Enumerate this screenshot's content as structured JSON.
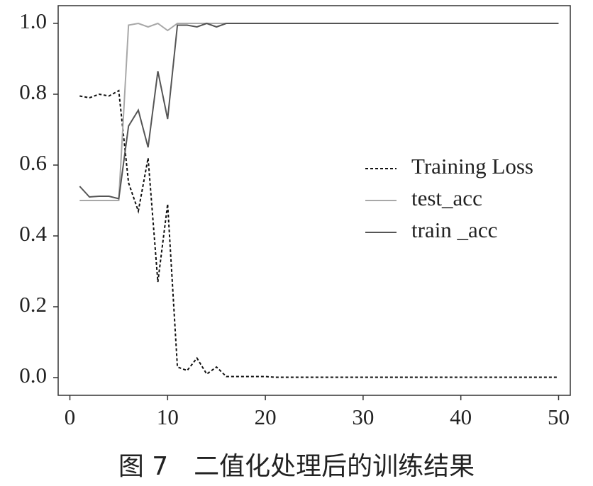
{
  "chart_data": {
    "type": "line",
    "caption": "图 7　二值化处理后的训练结果",
    "x": [
      1,
      2,
      3,
      4,
      5,
      6,
      7,
      8,
      9,
      10,
      11,
      12,
      13,
      14,
      15,
      16,
      17,
      18,
      19,
      20,
      21,
      22,
      23,
      24,
      25,
      26,
      27,
      28,
      29,
      30,
      31,
      32,
      33,
      34,
      35,
      36,
      37,
      38,
      39,
      40,
      41,
      42,
      43,
      44,
      45,
      46,
      47,
      48,
      49,
      50
    ],
    "series": [
      {
        "name": "Training Loss",
        "color": "#111111",
        "linestyle": "dashed",
        "values": [
          0.795,
          0.79,
          0.8,
          0.795,
          0.81,
          0.55,
          0.47,
          0.62,
          0.27,
          0.49,
          0.03,
          0.02,
          0.055,
          0.01,
          0.03,
          0.003,
          0.003,
          0.003,
          0.003,
          0.003,
          0.001,
          0.001,
          0.001,
          0.001,
          0.001,
          0.001,
          0.001,
          0.001,
          0.001,
          0.001,
          0.001,
          0.001,
          0.001,
          0.001,
          0.001,
          0.001,
          0.001,
          0.001,
          0.001,
          0.001,
          0.001,
          0.001,
          0.001,
          0.001,
          0.001,
          0.001,
          0.001,
          0.001,
          0.001,
          0.001
        ]
      },
      {
        "name": "test_acc",
        "color": "#a8a8a8",
        "linestyle": "solid",
        "values": [
          0.5,
          0.5,
          0.5,
          0.5,
          0.5,
          0.995,
          1.0,
          0.99,
          1.0,
          0.98,
          1.0,
          1.0,
          1.0,
          1.0,
          1.0,
          1.0,
          1.0,
          1.0,
          1.0,
          1.0,
          1.0,
          1.0,
          1.0,
          1.0,
          1.0,
          1.0,
          1.0,
          1.0,
          1.0,
          1.0,
          1.0,
          1.0,
          1.0,
          1.0,
          1.0,
          1.0,
          1.0,
          1.0,
          1.0,
          1.0,
          1.0,
          1.0,
          1.0,
          1.0,
          1.0,
          1.0,
          1.0,
          1.0,
          1.0,
          1.0
        ]
      },
      {
        "name": "train _acc",
        "color": "#555555",
        "linestyle": "solid",
        "values": [
          0.54,
          0.51,
          0.512,
          0.512,
          0.505,
          0.71,
          0.755,
          0.65,
          0.865,
          0.73,
          0.995,
          0.995,
          0.99,
          1.0,
          0.99,
          1.0,
          1.0,
          1.0,
          1.0,
          1.0,
          1.0,
          1.0,
          1.0,
          1.0,
          1.0,
          1.0,
          1.0,
          1.0,
          1.0,
          1.0,
          1.0,
          1.0,
          1.0,
          1.0,
          1.0,
          1.0,
          1.0,
          1.0,
          1.0,
          1.0,
          1.0,
          1.0,
          1.0,
          1.0,
          1.0,
          1.0,
          1.0,
          1.0,
          1.0,
          1.0
        ]
      }
    ],
    "xlim": [
      -1.2,
      51.2
    ],
    "xticks": [
      0,
      10,
      20,
      30,
      40,
      50
    ],
    "ylim": [
      -0.05,
      1.05
    ],
    "yticks": [
      {
        "value": 0,
        "label": "0.0"
      },
      0.2,
      0.4,
      0.6,
      0.8,
      {
        "value": 1,
        "label": "1.0"
      }
    ],
    "grid": false,
    "legend": "center right"
  }
}
